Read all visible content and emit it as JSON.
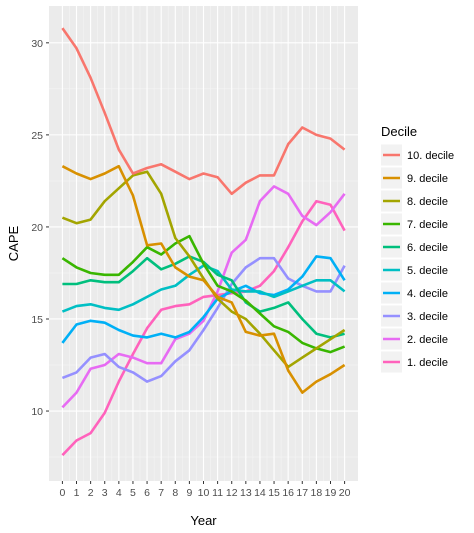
{
  "chart_data": {
    "type": "line",
    "xlabel": "Year",
    "ylabel": "CAPE",
    "x": [
      0,
      1,
      2,
      3,
      4,
      5,
      6,
      7,
      8,
      9,
      10,
      11,
      12,
      13,
      14,
      15,
      16,
      17,
      18,
      19,
      20
    ],
    "xlim": [
      -0.95,
      20.95
    ],
    "ylim": [
      6.2,
      32.0
    ],
    "y_ticks": [
      10,
      15,
      20,
      25,
      30
    ],
    "grid": true,
    "legend_title": "Decile",
    "legend_position": "right",
    "series": [
      {
        "name": "10. decile",
        "color": "#F8766D",
        "values": [
          30.8,
          29.7,
          28.1,
          26.2,
          24.2,
          22.9,
          23.2,
          23.4,
          23.0,
          22.6,
          22.9,
          22.7,
          21.8,
          22.4,
          22.8,
          22.8,
          24.5,
          25.4,
          25.0,
          24.8,
          24.2
        ]
      },
      {
        "name": "9. decile",
        "color": "#D89000",
        "values": [
          23.3,
          22.9,
          22.6,
          22.9,
          23.3,
          21.7,
          19.0,
          19.1,
          17.8,
          17.3,
          17.1,
          16.2,
          15.9,
          14.3,
          14.1,
          14.2,
          12.2,
          11.0,
          11.6,
          12.0,
          12.5
        ]
      },
      {
        "name": "8. decile",
        "color": "#A3A500",
        "values": [
          20.5,
          20.2,
          20.4,
          21.4,
          22.1,
          22.8,
          23.0,
          21.8,
          19.4,
          18.4,
          17.2,
          16.1,
          15.4,
          15.0,
          14.2,
          13.3,
          12.4,
          12.9,
          13.4,
          13.9,
          14.4
        ]
      },
      {
        "name": "7. decile",
        "color": "#39B600",
        "values": [
          18.3,
          17.8,
          17.5,
          17.4,
          17.4,
          18.1,
          18.9,
          18.5,
          19.1,
          19.5,
          18.0,
          16.8,
          16.5,
          16.0,
          15.3,
          14.6,
          14.3,
          13.7,
          13.4,
          13.2,
          13.5
        ]
      },
      {
        "name": "6. decile",
        "color": "#00BF7D",
        "values": [
          16.9,
          16.9,
          17.1,
          17.0,
          17.0,
          17.6,
          18.3,
          17.7,
          18.0,
          18.4,
          18.1,
          17.4,
          17.1,
          15.9,
          15.4,
          15.6,
          15.9,
          15.0,
          14.2,
          14.0,
          14.2
        ]
      },
      {
        "name": "5. decile",
        "color": "#00BFC4",
        "values": [
          15.4,
          15.7,
          15.8,
          15.6,
          15.5,
          15.8,
          16.2,
          16.6,
          16.8,
          17.4,
          17.9,
          17.6,
          16.6,
          16.5,
          16.5,
          16.2,
          16.5,
          16.8,
          17.1,
          17.1,
          16.5
        ]
      },
      {
        "name": "4. decile",
        "color": "#00B0F6",
        "values": [
          13.7,
          14.7,
          14.9,
          14.8,
          14.4,
          14.1,
          14.0,
          14.2,
          14.0,
          14.3,
          15.1,
          16.1,
          16.5,
          16.8,
          16.4,
          16.3,
          16.6,
          17.3,
          18.4,
          18.3,
          17.1
        ]
      },
      {
        "name": "3. decile",
        "color": "#9590FF",
        "values": [
          11.8,
          12.1,
          12.9,
          13.1,
          12.4,
          12.1,
          11.6,
          11.9,
          12.7,
          13.3,
          14.4,
          15.6,
          16.9,
          17.8,
          18.3,
          18.3,
          17.2,
          16.8,
          16.5,
          16.5,
          17.9
        ]
      },
      {
        "name": "2. decile",
        "color": "#E76BF3",
        "values": [
          10.2,
          11.0,
          12.3,
          12.5,
          13.1,
          12.9,
          12.6,
          12.6,
          13.9,
          14.2,
          14.9,
          16.5,
          18.6,
          19.3,
          21.4,
          22.2,
          21.8,
          20.6,
          20.1,
          20.8,
          21.8
        ]
      },
      {
        "name": "1. decile",
        "color": "#FF62BC",
        "values": [
          7.6,
          8.4,
          8.8,
          9.9,
          11.6,
          13.1,
          14.5,
          15.5,
          15.7,
          15.8,
          16.2,
          16.3,
          16.4,
          16.5,
          16.8,
          17.6,
          18.9,
          20.3,
          21.4,
          21.2,
          19.8
        ]
      }
    ]
  }
}
